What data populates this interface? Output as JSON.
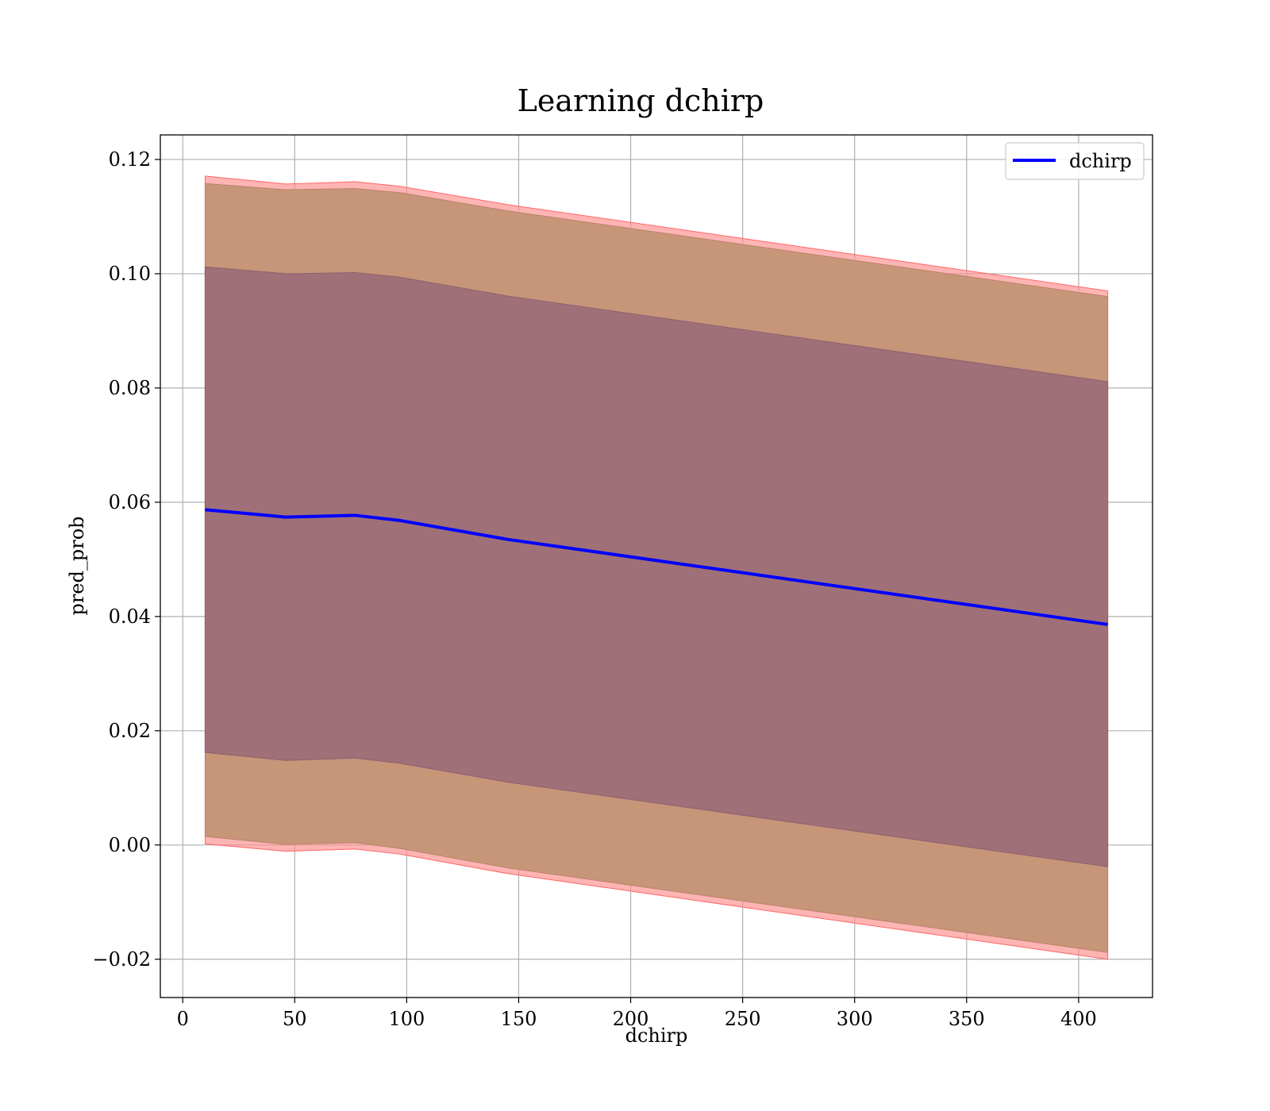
{
  "chart_data": {
    "type": "area",
    "title": "Learning dchirp",
    "xlabel": "dchirp",
    "ylabel": "pred_prob",
    "xlim": [
      -10,
      433
    ],
    "ylim": [
      -0.0267,
      0.1243
    ],
    "xticks": [
      0,
      50,
      100,
      150,
      200,
      250,
      300,
      350,
      400
    ],
    "xtick_labels": [
      "0",
      "50",
      "100",
      "150",
      "200",
      "250",
      "300",
      "350",
      "400"
    ],
    "yticks": [
      -0.02,
      0.0,
      0.02,
      0.04,
      0.06,
      0.08,
      0.1,
      0.12
    ],
    "ytick_labels": [
      "−0.02",
      "0.00",
      "0.02",
      "0.04",
      "0.06",
      "0.08",
      "0.10",
      "0.12"
    ],
    "grid": true,
    "legend": {
      "position": "top-right",
      "entries": [
        "dchirp"
      ]
    },
    "x": [
      10,
      46,
      77,
      97,
      145,
      413
    ],
    "series": [
      {
        "name": "dchirp",
        "kind": "line",
        "color": "#0000ff",
        "values": [
          0.0587,
          0.0574,
          0.0577,
          0.0568,
          0.0535,
          0.0386
        ]
      }
    ],
    "bands": [
      {
        "kind": "outer",
        "color": "#ff8c8c",
        "upper": [
          0.1171,
          0.1157,
          0.1161,
          0.1153,
          0.1121,
          0.097
        ],
        "lower": [
          0.0002,
          -0.0011,
          -0.0007,
          -0.0016,
          -0.005,
          -0.02
        ]
      },
      {
        "kind": "middle",
        "color": "#c79679",
        "upper": [
          0.1158,
          0.1147,
          0.1149,
          0.1142,
          0.111,
          0.096
        ],
        "lower": [
          0.0015,
          0.0001,
          0.0004,
          -0.0006,
          -0.004,
          -0.0188
        ]
      },
      {
        "kind": "inner",
        "color": "#a07078",
        "upper": [
          0.1012,
          0.1,
          0.1002,
          0.0994,
          0.0961,
          0.0811
        ],
        "lower": [
          0.0162,
          0.0148,
          0.0152,
          0.0143,
          0.011,
          -0.0038
        ]
      }
    ]
  }
}
